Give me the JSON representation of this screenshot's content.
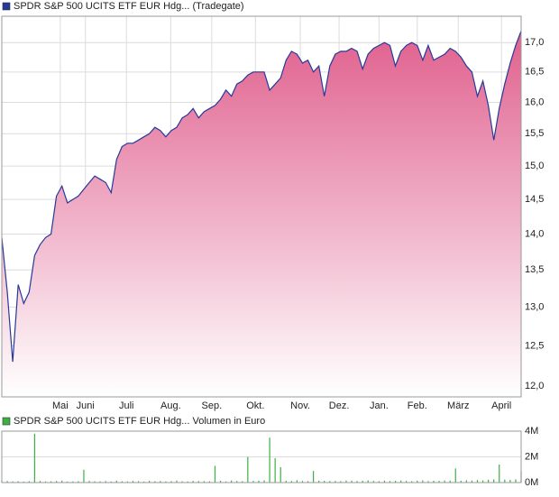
{
  "chart_data": [
    {
      "type": "area",
      "series": [
        {
          "name": "SPDR S&P 500 UCITS ETF EUR Hdg... (Tradegate)",
          "color": "#26399a",
          "values": [
            13.95,
            13.2,
            12.3,
            13.3,
            13.05,
            13.2,
            13.7,
            13.85,
            13.95,
            14.0,
            14.55,
            14.7,
            14.45,
            14.5,
            14.55,
            14.65,
            14.75,
            14.85,
            14.8,
            14.75,
            14.6,
            15.1,
            15.3,
            15.35,
            15.35,
            15.4,
            15.45,
            15.5,
            15.6,
            15.55,
            15.45,
            15.55,
            15.6,
            15.75,
            15.8,
            15.9,
            15.75,
            15.85,
            15.9,
            15.95,
            16.05,
            16.2,
            16.1,
            16.3,
            16.35,
            16.45,
            16.5,
            16.5,
            16.5,
            16.2,
            16.3,
            16.4,
            16.7,
            16.85,
            16.8,
            16.65,
            16.7,
            16.5,
            16.6,
            16.1,
            16.6,
            16.8,
            16.85,
            16.85,
            16.9,
            16.85,
            16.55,
            16.8,
            16.9,
            16.95,
            17.0,
            16.95,
            16.6,
            16.85,
            16.95,
            17.0,
            16.95,
            16.7,
            16.95,
            16.7,
            16.75,
            16.8,
            16.9,
            16.85,
            16.75,
            16.6,
            16.5,
            16.1,
            16.35,
            15.95,
            15.4,
            15.9,
            16.3,
            16.65,
            16.95,
            17.2
          ]
        }
      ],
      "fill_color": "#e0608e",
      "xlim": [
        0,
        95
      ],
      "xticks": [
        {
          "value": 10.7,
          "label": "Mai"
        },
        {
          "value": 15.3,
          "label": "Juni"
        },
        {
          "value": 22.8,
          "label": "Juli"
        },
        {
          "value": 30.9,
          "label": "Aug."
        },
        {
          "value": 38.4,
          "label": "Sep."
        },
        {
          "value": 46.4,
          "label": "Okt."
        },
        {
          "value": 54.6,
          "label": "Nov."
        },
        {
          "value": 61.7,
          "label": "Dez."
        },
        {
          "value": 69,
          "label": "Jan."
        },
        {
          "value": 76,
          "label": "Feb."
        },
        {
          "value": 83.5,
          "label": "März"
        },
        {
          "value": 91.4,
          "label": "April"
        }
      ],
      "ylim": [
        11.87,
        17.46
      ],
      "log": true,
      "yticks": [
        {
          "value": 12,
          "label": "12,0"
        },
        {
          "value": 12.5,
          "label": "12,5"
        },
        {
          "value": 13,
          "label": "13,0"
        },
        {
          "value": 13.5,
          "label": "13,5"
        },
        {
          "value": 14,
          "label": "14,0"
        },
        {
          "value": 14.5,
          "label": "14,5"
        },
        {
          "value": 15,
          "label": "15,0"
        },
        {
          "value": 15.5,
          "label": "15,5"
        },
        {
          "value": 16,
          "label": "16,0"
        },
        {
          "value": 16.5,
          "label": "16,5"
        },
        {
          "value": 17,
          "label": "17,0"
        }
      ],
      "grid": true
    },
    {
      "type": "bar",
      "series": [
        {
          "name": "SPDR S&P 500 UCITS ETF EUR Hdg... Volumen in Euro",
          "color": "#3cb043",
          "values": [
            150000,
            120000,
            90000,
            100000,
            80000,
            110000,
            3800000,
            130000,
            90000,
            100000,
            120000,
            150000,
            80000,
            90000,
            110000,
            1000000,
            130000,
            100000,
            90000,
            120000,
            80000,
            150000,
            100000,
            90000,
            130000,
            110000,
            80000,
            140000,
            100000,
            120000,
            90000,
            110000,
            150000,
            100000,
            90000,
            130000,
            120000,
            110000,
            100000,
            1300000,
            140000,
            90000,
            160000,
            120000,
            110000,
            2000000,
            130000,
            150000,
            170000,
            3500000,
            1900000,
            1200000,
            140000,
            120000,
            180000,
            130000,
            110000,
            900000,
            150000,
            140000,
            120000,
            130000,
            110000,
            160000,
            150000,
            120000,
            140000,
            170000,
            130000,
            110000,
            150000,
            120000,
            140000,
            160000,
            130000,
            110000,
            150000,
            170000,
            120000,
            140000,
            130000,
            160000,
            150000,
            1100000,
            140000,
            180000,
            160000,
            200000,
            170000,
            220000,
            250000,
            1400000,
            230000,
            210000,
            250000,
            900000
          ]
        }
      ],
      "xlim": [
        0,
        95
      ],
      "ylim": [
        0,
        4000000
      ],
      "yticks": [
        {
          "value": 0,
          "label": "0M"
        },
        {
          "value": 2000000,
          "label": "2M"
        },
        {
          "value": 4000000,
          "label": "4M"
        }
      ],
      "grid": true
    }
  ]
}
